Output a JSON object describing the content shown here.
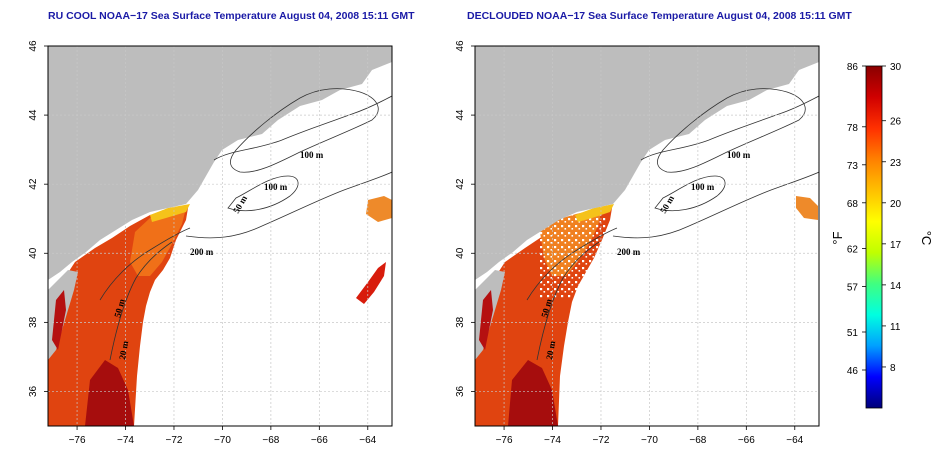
{
  "panels": [
    {
      "title": "RU COOL NOAA−17 Sea Surface Temperature August 04, 2008 15:11 GMT",
      "contour_labels": [
        "100 m",
        "100 m",
        "50 m",
        "200 m",
        "50 m",
        "20 m"
      ]
    },
    {
      "title": "DECLOUDED NOAA−17 Sea Surface Temperature August 04, 2008 15:11 GMT",
      "contour_labels": [
        "100 m",
        "100 m",
        "50 m",
        "200 m",
        "50 m",
        "20 m"
      ]
    }
  ],
  "map_axes": {
    "lon_ticks": [
      "−76",
      "−74",
      "−72",
      "−70",
      "−68",
      "−66",
      "−64"
    ],
    "lat_ticks": [
      "36",
      "38",
      "40",
      "42",
      "44",
      "46"
    ],
    "lon_range": [
      -77.2,
      -63.0
    ],
    "lat_range": [
      35.0,
      46.0
    ]
  },
  "colorbar": {
    "fahrenheit_ticks": [
      "86",
      "78",
      "73",
      "68",
      "62",
      "57",
      "51",
      "46"
    ],
    "celsius_ticks": [
      "30",
      "26",
      "23",
      "20",
      "17",
      "14",
      "11",
      "8"
    ],
    "fahrenheit_unit": "°F",
    "celsius_unit": "°C",
    "range_celsius": [
      5,
      30
    ],
    "colors": [
      "#00007a",
      "#0000ff",
      "#00a0ff",
      "#00ffe0",
      "#40ff80",
      "#c0ff00",
      "#ffff00",
      "#ffc000",
      "#ff8000",
      "#ff3000",
      "#d00000",
      "#8a0000"
    ]
  },
  "colors": {
    "land": "#bdbdbd",
    "ocean": "#ffffff",
    "title": "#1a1aa6",
    "grid": "#c8c8c8"
  }
}
